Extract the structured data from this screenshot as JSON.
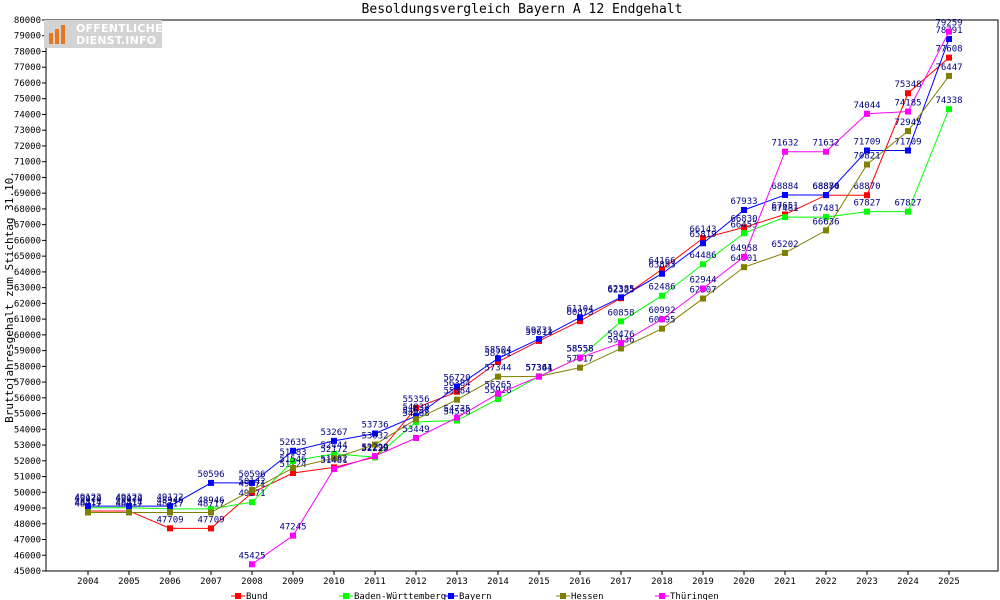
{
  "logo": {
    "line1": "OFFENTLICHER",
    "line2": "DIENST.INFO"
  },
  "chart_data": {
    "type": "line",
    "title": "Besoldungsvergleich Bayern A 12 Endgehalt",
    "xlabel": "",
    "ylabel": "Bruttojahresgehalt zum Stichtag 31.10.",
    "categories": [
      "2004",
      "2005",
      "2006",
      "2007",
      "2008",
      "2009",
      "2010",
      "2011",
      "2012",
      "2013",
      "2014",
      "2015",
      "2016",
      "2017",
      "2018",
      "2019",
      "2020",
      "2021",
      "2022",
      "2023",
      "2024",
      "2025"
    ],
    "ylim": [
      45000,
      80000
    ],
    "ytick_step": 1000,
    "grid": false,
    "legend_position": "bottom",
    "series": [
      {
        "name": "Bund",
        "color": "#ff0000",
        "values": [
          48814,
          48814,
          47709,
          47709,
          49971,
          51224,
          51582,
          52229,
          55356,
          56384,
          58291,
          59613,
          60873,
          62325,
          64166,
          66143,
          66830,
          67651,
          68870,
          68870,
          75348,
          77608
        ]
      },
      {
        "name": "Baden-Württemberg",
        "color": "#00ff00",
        "values": [
          49020,
          49020,
          48946,
          48946,
          49371,
          51983,
          52444,
          52229,
          54468,
          54558,
          55928,
          57361,
          58558,
          60858,
          62486,
          64486,
          66453,
          67481,
          67481,
          67827,
          67827,
          74338
        ]
      },
      {
        "name": "Bayern",
        "color": "#0000ff",
        "values": [
          49122,
          49122,
          49122,
          50596,
          50596,
          52635,
          53267,
          53736,
          54838,
          56720,
          58504,
          59731,
          61104,
          62385,
          63883,
          65819,
          67933,
          68884,
          68884,
          71709,
          71709,
          78791
        ]
      },
      {
        "name": "Hessen",
        "color": "#808000",
        "values": [
          48717,
          48717,
          48717,
          48717,
          50142,
          51546,
          52172,
          53032,
          54637,
          55884,
          57344,
          57361,
          57917,
          59136,
          60395,
          62307,
          64301,
          65202,
          66636,
          70821,
          72945,
          76447
        ]
      },
      {
        "name": "Thüringen",
        "color": "#ff00ff",
        "values": [
          null,
          null,
          null,
          null,
          45425,
          47245,
          51481,
          52299,
          53449,
          54735,
          56265,
          57344,
          58558,
          59476,
          60992,
          62944,
          64958,
          71632,
          71632,
          74044,
          74185,
          79259
        ]
      }
    ]
  }
}
